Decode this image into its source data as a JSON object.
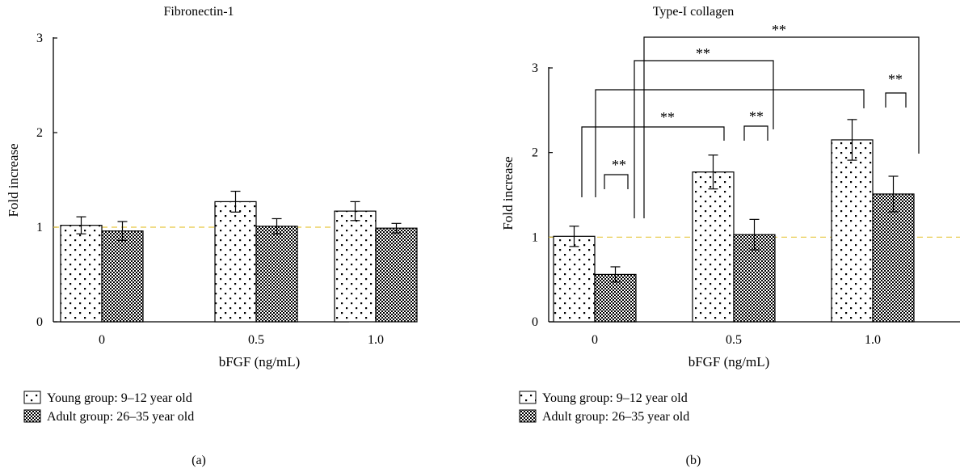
{
  "chart_data": [
    {
      "type": "bar",
      "title": "Fibronectin-1",
      "xlabel": "bFGF (ng/mL)",
      "ylabel": "Fold increase",
      "ylim": [
        0,
        3
      ],
      "yticks": [
        "0",
        "1",
        "2",
        "3"
      ],
      "categories": [
        "0",
        "0.5",
        "1.0"
      ],
      "series": [
        {
          "name": "Young group: 9–12 year old",
          "values": [
            1.02,
            1.27,
            1.17
          ],
          "errors": [
            0.09,
            0.11,
            0.1
          ]
        },
        {
          "name": "Adult group: 26–35 year old",
          "values": [
            0.96,
            1.01,
            0.99
          ],
          "errors": [
            0.1,
            0.08,
            0.05
          ]
        }
      ],
      "reference_line": 1.0,
      "legend_position": "bottom-left",
      "panel_label": "(a)",
      "significance": []
    },
    {
      "type": "bar",
      "title": "Type-I collagen",
      "xlabel": "bFGF (ng/mL)",
      "ylabel": "Fold increase",
      "ylim": [
        0,
        3
      ],
      "yticks": [
        "0",
        "1",
        "2",
        "3"
      ],
      "categories": [
        "0",
        "0.5",
        "1.0"
      ],
      "series": [
        {
          "name": "Young group: 9–12 year old",
          "values": [
            1.01,
            1.77,
            2.15
          ],
          "errors": [
            0.12,
            0.2,
            0.24
          ]
        },
        {
          "name": "Adult group: 26–35 year old",
          "values": [
            0.56,
            1.03,
            1.51
          ],
          "errors": [
            0.09,
            0.18,
            0.21
          ]
        }
      ],
      "reference_line": 1.0,
      "legend_position": "bottom-left",
      "panel_label": "(b)",
      "significance": [
        {
          "from": [
            0,
            0
          ],
          "to": [
            0,
            1
          ],
          "label": "**"
        },
        {
          "from": [
            1,
            0
          ],
          "to": [
            1,
            1
          ],
          "label": "**"
        },
        {
          "from": [
            2,
            0
          ],
          "to": [
            2,
            1
          ],
          "label": "**"
        },
        {
          "from": [
            0,
            0
          ],
          "to": [
            1,
            0
          ],
          "label": "**"
        },
        {
          "from": [
            0,
            0
          ],
          "to": [
            2,
            0
          ],
          "label": "**"
        },
        {
          "from": [
            0,
            1
          ],
          "to": [
            1,
            1
          ],
          "label": "**"
        },
        {
          "from": [
            0,
            1
          ],
          "to": [
            2,
            1
          ],
          "label": "**"
        }
      ]
    }
  ]
}
